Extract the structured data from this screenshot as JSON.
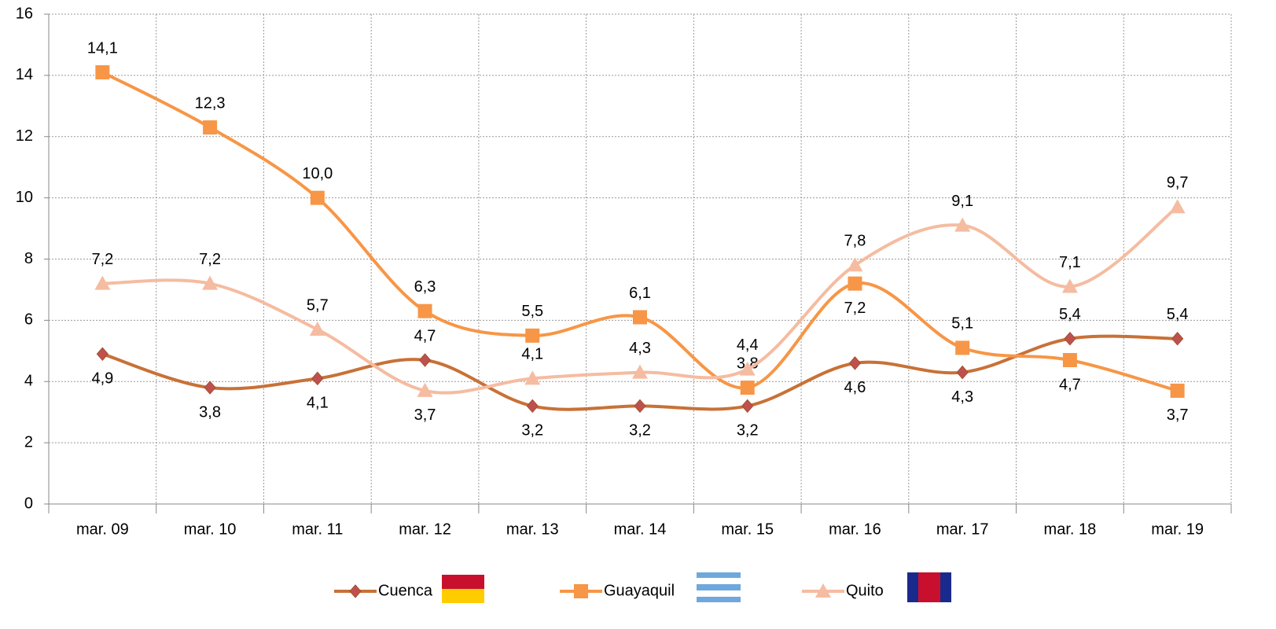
{
  "chart_data": {
    "type": "line",
    "categories": [
      "mar. 09",
      "mar. 10",
      "mar. 11",
      "mar. 12",
      "mar. 13",
      "mar. 14",
      "mar. 15",
      "mar. 16",
      "mar. 17",
      "mar. 18",
      "mar. 19"
    ],
    "series": [
      {
        "name": "Cuenca",
        "color": "#c87137",
        "marker_color": "#c0504d",
        "marker": "diamond",
        "values": [
          4.9,
          3.8,
          4.1,
          4.7,
          3.2,
          3.2,
          3.2,
          4.6,
          4.3,
          5.4,
          5.4
        ],
        "value_labels": [
          "4,9",
          "3,8",
          "4,1",
          "4,7",
          "3,2",
          "3,2",
          "3,2",
          "4,6",
          "4,3",
          "5,4",
          "5,4"
        ]
      },
      {
        "name": "Guayaquil",
        "color": "#f79646",
        "marker_color": "#f79646",
        "marker": "square",
        "values": [
          14.1,
          12.3,
          10.0,
          6.3,
          5.5,
          6.1,
          3.8,
          7.2,
          5.1,
          4.7,
          3.7
        ],
        "value_labels": [
          "14,1",
          "12,3",
          "10,0",
          "6,3",
          "5,5",
          "6,1",
          "3,8",
          "7,2",
          "5,1",
          "4,7",
          "3,7"
        ]
      },
      {
        "name": "Quito",
        "color": "#f5bca1",
        "marker_color": "#f5bca1",
        "marker": "triangle",
        "values": [
          7.2,
          7.2,
          5.7,
          3.7,
          4.1,
          4.3,
          4.4,
          7.8,
          9.1,
          7.1,
          9.7
        ],
        "value_labels": [
          "7,2",
          "7,2",
          "5,7",
          "3,7",
          "4,1",
          "4,3",
          "4,4",
          "7,8",
          "9,1",
          "7,1",
          "9,7"
        ]
      }
    ],
    "ylim": [
      0,
      16
    ],
    "yticks": [
      0,
      2,
      4,
      6,
      8,
      10,
      12,
      14,
      16
    ],
    "grid": true
  }
}
